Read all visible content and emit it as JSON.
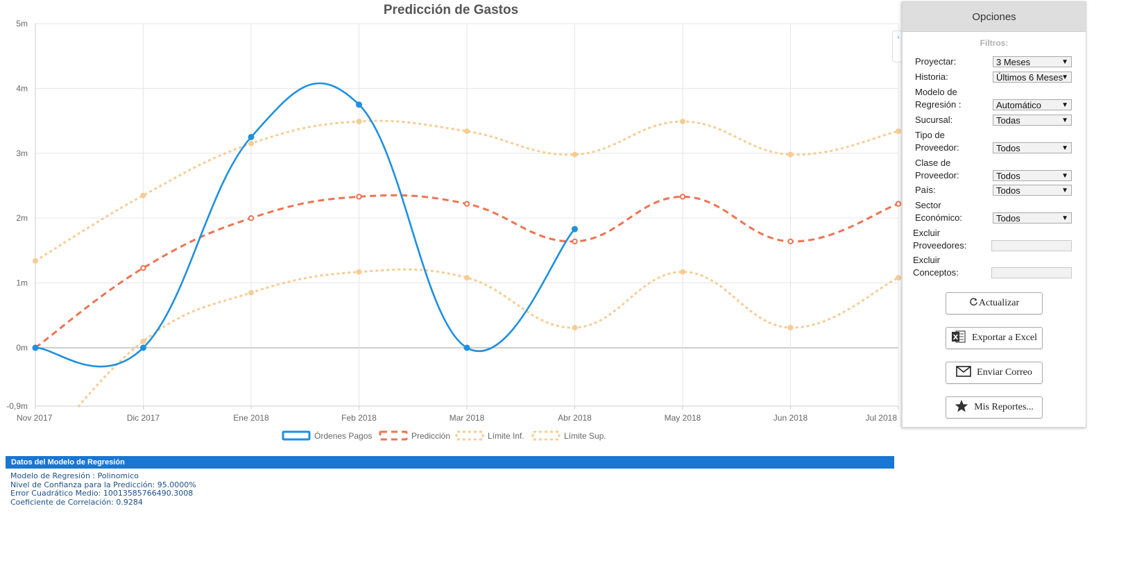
{
  "chart_data": {
    "type": "line",
    "title": "Predicción de Gastos",
    "categories": [
      "Nov 2017",
      "Dic 2017",
      "Ene 2018",
      "Feb 2018",
      "Mar 2018",
      "Abr 2018",
      "May 2018",
      "Jun 2018",
      "Jul 2018"
    ],
    "y_ticks": [
      "5m",
      "4m",
      "3m",
      "2m",
      "1m",
      "0m",
      "-0,9m"
    ],
    "y_tick_values": [
      5,
      4,
      3,
      2,
      1,
      0,
      -0.9
    ],
    "ylim": [
      -0.9,
      5
    ],
    "grid": true,
    "legend_position": "bottom",
    "series": [
      {
        "name": "Órdenes Pagos",
        "color": "#1e90e0",
        "style": "solid",
        "values": [
          0,
          0,
          3.25,
          3.75,
          0,
          1.83,
          null,
          null,
          null
        ]
      },
      {
        "name": "Predicción",
        "color": "#ee7352",
        "style": "dashed",
        "values": [
          0,
          1.23,
          2.0,
          2.33,
          2.22,
          1.64,
          2.33,
          1.64,
          2.22
        ]
      },
      {
        "name": "Límite Inf.",
        "color": "#f7cc94",
        "style": "dotted",
        "values": [
          -1.7,
          0.1,
          0.85,
          1.17,
          1.08,
          0.31,
          1.17,
          0.31,
          1.08
        ]
      },
      {
        "name": "Límite Sup.",
        "color": "#f7cc94",
        "style": "dotted",
        "values": [
          1.34,
          2.35,
          3.15,
          3.49,
          3.34,
          2.98,
          3.49,
          2.98,
          3.34
        ]
      }
    ]
  },
  "panel": {
    "title": "Opciones",
    "filters_title": "Filtros:",
    "filters": [
      {
        "label1": "Proyectar:",
        "label2": "",
        "value": "3 Meses",
        "kind": "select"
      },
      {
        "label1": "Historia:",
        "label2": "",
        "value": "Últimos 6 Meses",
        "kind": "select"
      },
      {
        "label1": "Modelo de",
        "label2": "Regresión :",
        "value": "Automático",
        "kind": "select"
      },
      {
        "label1": "Sucursal:",
        "label2": "",
        "value": "Todas",
        "kind": "select"
      },
      {
        "label1": "Tipo de",
        "label2": "Proveedor:",
        "value": "Todos",
        "kind": "select"
      },
      {
        "label1": "Clase de",
        "label2": "Proveedor:",
        "value": "Todos",
        "kind": "select"
      },
      {
        "label1": "País:",
        "label2": "",
        "value": "Todos",
        "kind": "select"
      },
      {
        "label1": "Sector",
        "label2": "Económico:",
        "value": "Todos",
        "kind": "select"
      },
      {
        "label1": "Excluir",
        "label2": "Proveedores:",
        "value": "",
        "kind": "input"
      },
      {
        "label1": "Excluir",
        "label2": "Conceptos:",
        "value": "",
        "kind": "input"
      }
    ],
    "buttons": [
      {
        "label": "Actualizar",
        "icon": "refresh-icon"
      },
      {
        "label": "Exportar a Excel",
        "icon": "excel-icon"
      },
      {
        "label": "Enviar Correo",
        "icon": "envelope-icon"
      },
      {
        "label": "Mis Reportes...",
        "icon": "star-icon"
      }
    ]
  },
  "regression": {
    "header": "Datos del Modelo de Regresión",
    "lines": [
      "Modelo de Regresión : Polinomico",
      "Nivel de Confianza para la Predicción: 95.0000%",
      "Error Cuadrático Medio: 10013585766490.3008",
      "Coeficiente de Correlación: 0.9284"
    ]
  },
  "edge_tab_glyph": "›"
}
